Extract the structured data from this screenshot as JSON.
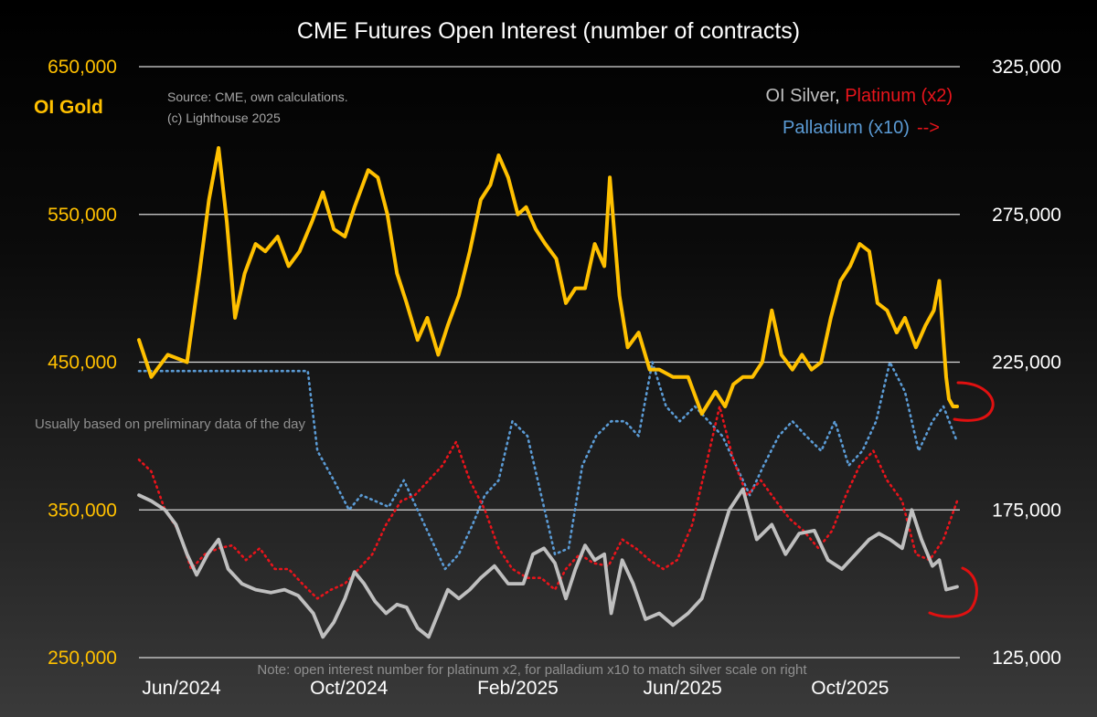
{
  "chart_data": {
    "type": "line",
    "title": "CME Futures Open Interest (number of contracts)",
    "left_axis_label": "OI Gold",
    "source": "Source: CME, own calculations.",
    "copyright": "(c) Lighthouse 2025",
    "note_daily": "Usually based on preliminary data of the day",
    "note_scale": "Note: open interest number for platinum x2, for palladium x10 to match silver scale on right",
    "legend": {
      "silver": "OI Silver",
      "sep": ", ",
      "platinum": "Platinum (x2)",
      "palladium": "Palladium (x10)",
      "arrow": "-->"
    },
    "x_range": [
      "2024-05-01",
      "2025-12-20"
    ],
    "x_ticks": [
      {
        "date": "2024-06-01",
        "label": "Jun/2024"
      },
      {
        "date": "2024-10-01",
        "label": "Oct/2024"
      },
      {
        "date": "2025-02-01",
        "label": "Feb/2025"
      },
      {
        "date": "2025-06-01",
        "label": "Jun/2025"
      },
      {
        "date": "2025-10-01",
        "label": "Oct/2025"
      }
    ],
    "y_left": {
      "min": 250000,
      "max": 650000,
      "ticks": [
        {
          "value": 250000,
          "label": "250,000"
        },
        {
          "value": 350000,
          "label": "350,000"
        },
        {
          "value": 450000,
          "label": "450,000"
        },
        {
          "value": 550000,
          "label": "550,000"
        },
        {
          "value": 650000,
          "label": "650,000"
        }
      ]
    },
    "y_right": {
      "min": 125000,
      "max": 325000,
      "ticks": [
        {
          "value": 125000,
          "label": "125,000"
        },
        {
          "value": 175000,
          "label": "175,000"
        },
        {
          "value": 225000,
          "label": "225,000"
        },
        {
          "value": 275000,
          "label": "275,000"
        },
        {
          "value": 325000,
          "label": "325,000"
        }
      ]
    },
    "grid": "horizontal",
    "colors": {
      "gold": "#ffc000",
      "silver": "#bfbfbf",
      "platinum": "#e8141b",
      "palladium": "#5b9bd5",
      "annotation": "#e01010"
    },
    "series": [
      {
        "name": "OI Gold",
        "axis": "left",
        "style": "solid",
        "x": [
          "2024-05-01",
          "2024-05-10",
          "2024-05-22",
          "2024-06-05",
          "2024-06-14",
          "2024-06-21",
          "2024-06-28",
          "2024-07-04",
          "2024-07-10",
          "2024-07-17",
          "2024-07-25",
          "2024-08-01",
          "2024-08-10",
          "2024-08-18",
          "2024-08-26",
          "2024-09-04",
          "2024-09-12",
          "2024-09-20",
          "2024-09-28",
          "2024-10-05",
          "2024-10-15",
          "2024-10-22",
          "2024-10-29",
          "2024-11-05",
          "2024-11-12",
          "2024-11-20",
          "2024-11-27",
          "2024-12-05",
          "2024-12-12",
          "2024-12-20",
          "2024-12-28",
          "2025-01-05",
          "2025-01-12",
          "2025-01-18",
          "2025-01-25",
          "2025-02-01",
          "2025-02-07",
          "2025-02-14",
          "2025-02-21",
          "2025-03-01",
          "2025-03-08",
          "2025-03-15",
          "2025-03-22",
          "2025-03-29",
          "2025-04-05",
          "2025-04-09",
          "2025-04-16",
          "2025-04-22",
          "2025-04-30",
          "2025-05-08",
          "2025-05-15",
          "2025-05-25",
          "2025-06-05",
          "2025-06-15",
          "2025-06-25",
          "2025-07-02",
          "2025-07-08",
          "2025-07-15",
          "2025-07-22",
          "2025-07-29",
          "2025-08-05",
          "2025-08-12",
          "2025-08-20",
          "2025-08-27",
          "2025-09-03",
          "2025-09-10",
          "2025-09-17",
          "2025-09-24",
          "2025-10-01",
          "2025-10-08",
          "2025-10-15",
          "2025-10-21",
          "2025-10-28",
          "2025-11-04",
          "2025-11-10",
          "2025-11-18",
          "2025-11-25",
          "2025-12-01",
          "2025-12-05",
          "2025-12-08",
          "2025-12-10",
          "2025-12-12",
          "2025-12-15",
          "2025-12-18"
        ],
        "values": [
          465000,
          440000,
          455000,
          450000,
          510000,
          560000,
          595000,
          545000,
          480000,
          510000,
          530000,
          525000,
          535000,
          515000,
          525000,
          545000,
          565000,
          540000,
          535000,
          555000,
          580000,
          575000,
          550000,
          510000,
          490000,
          465000,
          480000,
          455000,
          475000,
          495000,
          525000,
          560000,
          570000,
          590000,
          575000,
          550000,
          555000,
          540000,
          530000,
          520000,
          490000,
          500000,
          500000,
          530000,
          515000,
          575000,
          495000,
          460000,
          470000,
          445000,
          445000,
          440000,
          440000,
          415000,
          430000,
          420000,
          435000,
          440000,
          440000,
          450000,
          485000,
          455000,
          445000,
          455000,
          445000,
          450000,
          480000,
          505000,
          515000,
          530000,
          525000,
          490000,
          485000,
          470000,
          480000,
          460000,
          475000,
          485000,
          505000,
          465000,
          440000,
          425000,
          420000,
          420000
        ]
      },
      {
        "name": "OI Silver",
        "axis": "right",
        "style": "solid",
        "x": [
          "2024-05-01",
          "2024-05-10",
          "2024-05-20",
          "2024-05-28",
          "2024-06-05",
          "2024-06-12",
          "2024-06-20",
          "2024-06-28",
          "2024-07-05",
          "2024-07-15",
          "2024-07-25",
          "2024-08-05",
          "2024-08-15",
          "2024-08-25",
          "2024-09-05",
          "2024-09-12",
          "2024-09-20",
          "2024-09-28",
          "2024-10-05",
          "2024-10-12",
          "2024-10-20",
          "2024-10-28",
          "2024-11-05",
          "2024-11-12",
          "2024-11-20",
          "2024-11-28",
          "2024-12-05",
          "2024-12-12",
          "2024-12-20",
          "2024-12-28",
          "2025-01-05",
          "2025-01-15",
          "2025-01-25",
          "2025-02-05",
          "2025-02-12",
          "2025-02-20",
          "2025-02-28",
          "2025-03-08",
          "2025-03-15",
          "2025-03-22",
          "2025-03-29",
          "2025-04-05",
          "2025-04-10",
          "2025-04-18",
          "2025-04-26",
          "2025-05-05",
          "2025-05-15",
          "2025-05-25",
          "2025-06-05",
          "2025-06-15",
          "2025-06-25",
          "2025-07-05",
          "2025-07-15",
          "2025-07-25",
          "2025-08-05",
          "2025-08-15",
          "2025-08-25",
          "2025-09-05",
          "2025-09-15",
          "2025-09-25",
          "2025-10-05",
          "2025-10-15",
          "2025-10-22",
          "2025-10-30",
          "2025-11-08",
          "2025-11-15",
          "2025-11-22",
          "2025-11-30",
          "2025-12-05",
          "2025-12-10",
          "2025-12-18"
        ],
        "values": [
          180000,
          178000,
          175000,
          170000,
          160000,
          153000,
          160000,
          165000,
          155000,
          150000,
          148000,
          147000,
          148000,
          146000,
          140000,
          132000,
          137000,
          145000,
          154000,
          150000,
          144000,
          140000,
          143000,
          142000,
          135000,
          132000,
          140000,
          148000,
          145000,
          148000,
          152000,
          156000,
          150000,
          150000,
          160000,
          162000,
          157000,
          145000,
          155000,
          163000,
          158000,
          160000,
          140000,
          158000,
          150000,
          138000,
          140000,
          136000,
          140000,
          145000,
          160000,
          175000,
          182000,
          165000,
          170000,
          160000,
          167000,
          168000,
          158000,
          155000,
          160000,
          165000,
          167000,
          165000,
          162000,
          175000,
          165000,
          156000,
          158000,
          148000,
          149000
        ]
      },
      {
        "name": "Platinum (x2)",
        "axis": "right",
        "style": "dotted",
        "x": [
          "2024-05-01",
          "2024-05-10",
          "2024-05-20",
          "2024-05-30",
          "2024-06-08",
          "2024-06-18",
          "2024-06-28",
          "2024-07-08",
          "2024-07-18",
          "2024-07-28",
          "2024-08-08",
          "2024-08-18",
          "2024-08-28",
          "2024-09-08",
          "2024-09-18",
          "2024-09-28",
          "2024-10-08",
          "2024-10-18",
          "2024-10-28",
          "2024-11-08",
          "2024-11-18",
          "2024-11-28",
          "2024-12-08",
          "2024-12-18",
          "2024-12-28",
          "2025-01-08",
          "2025-01-18",
          "2025-01-28",
          "2025-02-08",
          "2025-02-18",
          "2025-02-28",
          "2025-03-08",
          "2025-03-18",
          "2025-03-28",
          "2025-04-08",
          "2025-04-18",
          "2025-04-28",
          "2025-05-08",
          "2025-05-18",
          "2025-05-28",
          "2025-06-08",
          "2025-06-18",
          "2025-06-28",
          "2025-07-08",
          "2025-07-18",
          "2025-07-28",
          "2025-08-08",
          "2025-08-18",
          "2025-08-28",
          "2025-09-08",
          "2025-09-18",
          "2025-09-28",
          "2025-10-08",
          "2025-10-18",
          "2025-10-28",
          "2025-11-08",
          "2025-11-18",
          "2025-11-28",
          "2025-12-08",
          "2025-12-18"
        ],
        "values": [
          192000,
          188000,
          175000,
          168000,
          155000,
          160000,
          162000,
          163000,
          158000,
          162000,
          155000,
          155000,
          150000,
          145000,
          148000,
          150000,
          155000,
          160000,
          170000,
          178000,
          180000,
          185000,
          190000,
          198000,
          185000,
          175000,
          162000,
          155000,
          152000,
          152000,
          148000,
          155000,
          160000,
          157000,
          156000,
          165000,
          162000,
          158000,
          155000,
          158000,
          170000,
          190000,
          210000,
          192000,
          180000,
          185000,
          178000,
          172000,
          168000,
          162000,
          168000,
          180000,
          190000,
          195000,
          185000,
          178000,
          160000,
          158000,
          165000,
          178000
        ]
      },
      {
        "name": "Palladium (x10)",
        "axis": "right",
        "style": "dotted",
        "x": [
          "2024-05-01",
          "2024-05-20",
          "2024-06-10",
          "2024-07-01",
          "2024-07-20",
          "2024-08-10",
          "2024-09-01",
          "2024-09-08",
          "2024-09-20",
          "2024-10-01",
          "2024-10-10",
          "2024-10-20",
          "2024-10-30",
          "2024-11-10",
          "2024-11-20",
          "2024-11-30",
          "2024-12-10",
          "2024-12-20",
          "2024-12-30",
          "2025-01-08",
          "2025-01-18",
          "2025-01-28",
          "2025-02-08",
          "2025-02-18",
          "2025-02-28",
          "2025-03-10",
          "2025-03-20",
          "2025-03-30",
          "2025-04-10",
          "2025-04-20",
          "2025-04-30",
          "2025-05-10",
          "2025-05-20",
          "2025-05-30",
          "2025-06-10",
          "2025-06-20",
          "2025-06-30",
          "2025-07-10",
          "2025-07-20",
          "2025-07-30",
          "2025-08-10",
          "2025-08-20",
          "2025-08-30",
          "2025-09-10",
          "2025-09-20",
          "2025-09-30",
          "2025-10-10",
          "2025-10-20",
          "2025-10-30",
          "2025-11-10",
          "2025-11-20",
          "2025-11-30",
          "2025-12-08",
          "2025-12-18"
        ],
        "values": [
          222000,
          222000,
          222000,
          222000,
          222000,
          222000,
          222000,
          195000,
          185000,
          175000,
          180000,
          178000,
          176000,
          185000,
          175000,
          165000,
          155000,
          160000,
          170000,
          180000,
          185000,
          205000,
          200000,
          180000,
          160000,
          162000,
          190000,
          200000,
          205000,
          205000,
          200000,
          225000,
          210000,
          205000,
          210000,
          205000,
          200000,
          190000,
          180000,
          190000,
          200000,
          205000,
          200000,
          195000,
          205000,
          190000,
          195000,
          205000,
          225000,
          215000,
          195000,
          205000,
          210000,
          198000
        ]
      }
    ]
  }
}
